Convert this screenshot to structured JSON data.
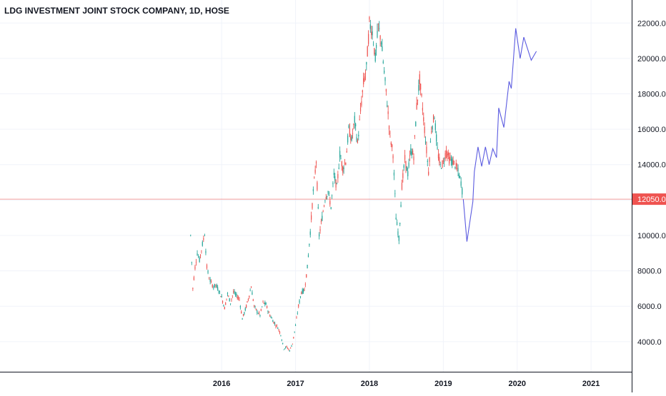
{
  "chart_data": {
    "type": "line",
    "title": "LDG INVESTMENT JOINT STOCK COMPANY, 1D, HOSE",
    "xlabel": "",
    "ylabel": "",
    "x_ticks": [
      "2016",
      "2017",
      "2018",
      "2019",
      "2020",
      "2021"
    ],
    "y_ticks": [
      4000.0,
      6000.0,
      8000.0,
      10000.0,
      12000.0,
      14000.0,
      16000.0,
      18000.0,
      20000.0,
      22000.0
    ],
    "y_tick_labels": [
      "4000.0",
      "6000.0",
      "8000.0",
      "10000.0",
      "12000.0",
      "14000.0",
      "16000.0",
      "18000.0",
      "20000.0",
      "22000.0"
    ],
    "ylim": [
      2300,
      23300
    ],
    "xlim": [
      2013.0,
      2021.55
    ],
    "grid": true,
    "current_price": {
      "value": 12050.0,
      "label": "12050.0",
      "color": "#ef5350"
    },
    "colors": {
      "up": "#26a69a",
      "down": "#ef5350",
      "projection": "#5b5be0",
      "grid": "#f0f3fa",
      "axis": "#131722",
      "text": "#131722"
    },
    "series": [
      {
        "kind": "price",
        "x": [
          2015.58,
          2015.61,
          2015.64,
          2015.67,
          2015.7,
          2015.74,
          2015.77,
          2015.8,
          2015.83,
          2015.86,
          2015.89,
          2015.92,
          2015.96,
          2016.0,
          2016.04,
          2016.08,
          2016.12,
          2016.16,
          2016.2,
          2016.24,
          2016.28,
          2016.32,
          2016.36,
          2016.4,
          2016.44,
          2016.48,
          2016.52,
          2016.56,
          2016.6,
          2016.64,
          2016.68,
          2016.72,
          2016.76,
          2016.8,
          2016.84,
          2016.88,
          2016.92,
          2016.96,
          2017.0,
          2017.04,
          2017.08,
          2017.12,
          2017.16,
          2017.2,
          2017.24,
          2017.28,
          2017.32,
          2017.36,
          2017.4,
          2017.44,
          2017.48,
          2017.52,
          2017.56,
          2017.6,
          2017.64,
          2017.68,
          2017.72,
          2017.76,
          2017.8,
          2017.84,
          2017.88,
          2017.92,
          2017.96,
          2018.0,
          2018.04,
          2018.08,
          2018.12,
          2018.16,
          2018.2,
          2018.24,
          2018.28,
          2018.32,
          2018.36,
          2018.4,
          2018.44,
          2018.48,
          2018.52,
          2018.56,
          2018.6,
          2018.64,
          2018.68,
          2018.72,
          2018.76,
          2018.8,
          2018.84,
          2018.88,
          2018.92,
          2018.96,
          2019.0,
          2019.04,
          2019.08,
          2019.12,
          2019.16,
          2019.2,
          2019.24,
          2019.27
        ],
        "y": [
          10000,
          7000,
          8200,
          9000,
          8600,
          9500,
          10100,
          8200,
          7600,
          7300,
          7100,
          7200,
          6900,
          6500,
          5900,
          6700,
          6200,
          6800,
          6600,
          6400,
          5300,
          5800,
          6400,
          7100,
          6000,
          5700,
          5500,
          6200,
          6100,
          5600,
          5300,
          5000,
          4800,
          4400,
          3600,
          3700,
          3500,
          3900,
          4900,
          6000,
          6800,
          6900,
          8200,
          10200,
          12500,
          14200,
          10000,
          11000,
          12100,
          12500,
          11600,
          13400,
          12700,
          14600,
          13800,
          14200,
          16000,
          15400,
          16500,
          15200,
          17000,
          18600,
          19500,
          22000,
          21500,
          20000,
          21800,
          21000,
          19200,
          17500,
          15600,
          14600,
          11000,
          9800,
          12800,
          14300,
          13500,
          14800,
          14500,
          17300,
          18800,
          17200,
          15400,
          13600,
          16000,
          16800,
          14800,
          13900,
          14100,
          14800,
          14300,
          14200,
          14000,
          13600,
          13000,
          12050
        ]
      },
      {
        "kind": "projection",
        "x": [
          2019.27,
          2019.32,
          2019.4,
          2019.42,
          2019.47,
          2019.52,
          2019.57,
          2019.62,
          2019.67,
          2019.72,
          2019.75,
          2019.82,
          2019.89,
          2019.92,
          2019.98,
          2020.04,
          2020.09,
          2020.19,
          2020.26
        ],
        "y": [
          12050,
          9650,
          11900,
          13600,
          15000,
          13900,
          15000,
          14000,
          14900,
          14400,
          17200,
          16100,
          18700,
          18300,
          21700,
          20000,
          21200,
          19900,
          20400
        ]
      }
    ]
  }
}
